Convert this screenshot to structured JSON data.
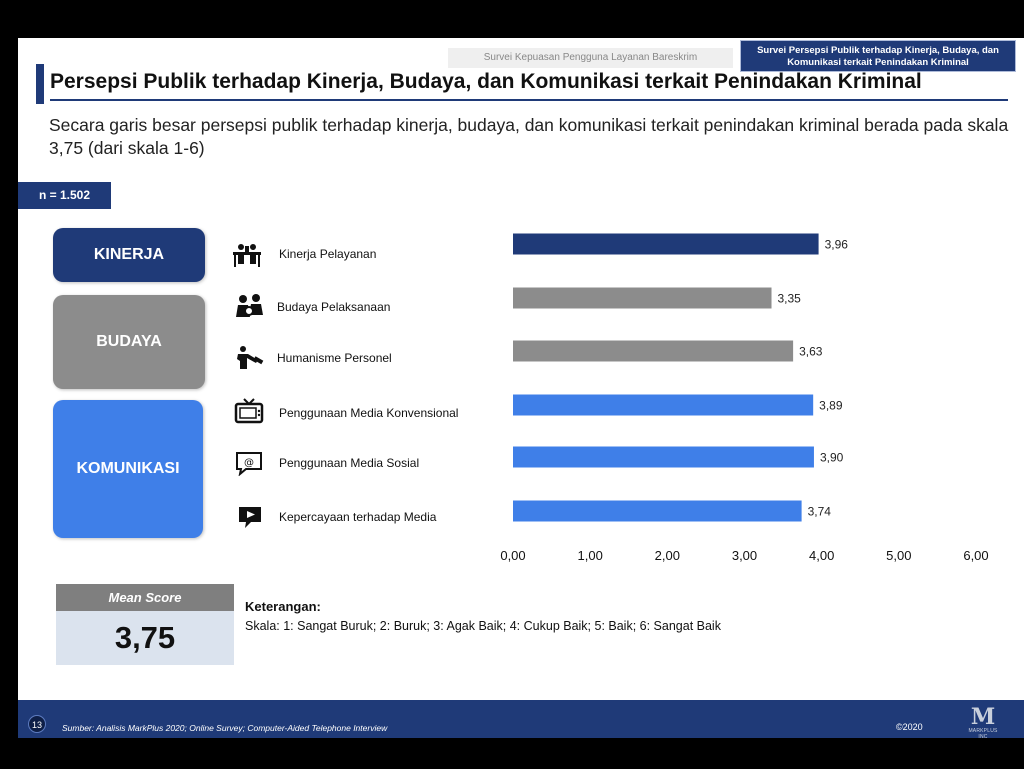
{
  "header": {
    "tab_inactive": "Survei Kepuasan Pengguna Layanan Bareskrim",
    "tab_active": "Survei Persepsi Publik terhadap Kinerja, Budaya, dan Komunikasi terkait Penindakan Kriminal",
    "title": "Persepsi Publik terhadap Kinerja, Budaya, dan Komunikasi terkait Penindakan Kriminal",
    "subtitle": "Secara garis besar persepsi publik terhadap kinerja, budaya, dan komunikasi terkait penindakan kriminal berada pada skala 3,75 (dari skala 1-6)",
    "sample": "n = 1.502"
  },
  "categories": {
    "kinerja": "KINERJA",
    "budaya": "BUDAYA",
    "komunikasi": "KOMUNIKASI"
  },
  "items": [
    {
      "label": "Kinerja Pelayanan",
      "icon": "office-desk-icon"
    },
    {
      "label": "Budaya Pelaksanaan",
      "icon": "people-meeting-icon"
    },
    {
      "label": "Humanisme Personel",
      "icon": "handshake-icon"
    },
    {
      "label": "Penggunaan Media Konvensional",
      "icon": "tv-icon"
    },
    {
      "label": "Penggunaan Media Sosial",
      "icon": "chat-at-icon"
    },
    {
      "label": "Kepercayaan terhadap Media",
      "icon": "chat-play-icon"
    }
  ],
  "chart_data": {
    "type": "bar",
    "orientation": "horizontal",
    "categories": [
      "Kinerja Pelayanan",
      "Budaya Pelaksanaan",
      "Humanisme Personel",
      "Penggunaan Media Konvensional",
      "Penggunaan Media Sosial",
      "Kepercayaan terhadap Media"
    ],
    "values": [
      3.96,
      3.35,
      3.63,
      3.89,
      3.9,
      3.74
    ],
    "value_labels": [
      "3,96",
      "3,35",
      "3,63",
      "3,89",
      "3,90",
      "3,74"
    ],
    "colors": [
      "#1f3a78",
      "#8c8c8c",
      "#8c8c8c",
      "#3f7fe8",
      "#3f7fe8",
      "#3f7fe8"
    ],
    "xlim": [
      0,
      6
    ],
    "xticks": [
      0,
      1,
      2,
      3,
      4,
      5,
      6
    ],
    "xtick_labels": [
      "0,00",
      "1,00",
      "2,00",
      "3,00",
      "4,00",
      "5,00",
      "6,00"
    ],
    "grid": false,
    "legend": "none"
  },
  "mean": {
    "label": "Mean Score",
    "value": "3,75"
  },
  "legend_note": {
    "title": "Keterangan:",
    "text": "Skala: 1: Sangat Buruk; 2: Buruk; 3: Agak Baik; 4: Cukup Baik; 5: Baik; 6: Sangat Baik"
  },
  "footer": {
    "page": "13",
    "source": "Sumber: Analisis MarkPlus 2020; Online Survey; Computer-Aided Telephone Interview",
    "year": "©2020",
    "logo_letter": "M",
    "logo_text": "MARKPLUS INC"
  },
  "colors": {
    "navy": "#1f3a78",
    "gray": "#8c8c8c",
    "blue": "#3f7fe8"
  }
}
